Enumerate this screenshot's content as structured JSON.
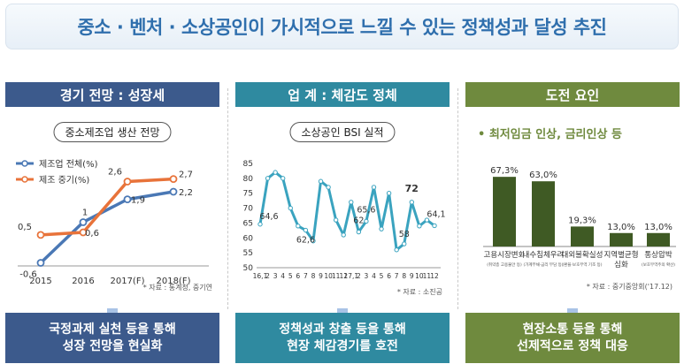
{
  "banner_title": "중소 · 벤처 · 소상공인이 가시적으로 느낄 수 있는 정책성과 달성 추진",
  "columns": {
    "c1": {
      "header": "경기 전망 : 성장세",
      "pill": "중소제조업 생산 전망",
      "source": "* 자료 : 통계청, 중기연",
      "footer_line1": "국정과제 실천 등을 통해",
      "footer_line2": "성장 전망을 현실화"
    },
    "c2": {
      "header": "업 계 : 체감도 정체",
      "pill": "소상공인 BSI 실적",
      "source": "* 자료 : 소진공",
      "footer_line1": "정책성과 창출 등을 통해",
      "footer_line2": "현장 체감경기를 호전"
    },
    "c3": {
      "header": "도전 요인",
      "bullet": "• 최저임금 인상, 금리인상 등",
      "source": "* 자료 : 중기중앙회('17.12)",
      "footer_line1": "현장소통 등을 통해",
      "footer_line2": "선제적으로 정책 대응"
    }
  },
  "colors": {
    "blue_series": "#4a78b5",
    "orange_series": "#e8733a",
    "bsi_line": "#3aa3bf",
    "bar": "#3f5a24",
    "arrow": "#a9c3e6"
  },
  "chart_data": [
    {
      "type": "line",
      "title": "중소제조업 생산 전망",
      "categories": [
        "2015",
        "2016",
        "2017(F)",
        "2018(F)"
      ],
      "series": [
        {
          "name": "제조업 전체(%)",
          "values": [
            -0.6,
            1,
            1.9,
            2.2
          ],
          "labels": [
            "-0,6",
            "1",
            "1,9",
            "2,2"
          ]
        },
        {
          "name": "제조 중기(%)",
          "values": [
            0.5,
            0.6,
            2.6,
            2.7
          ],
          "labels": [
            "0,5",
            "0,6",
            "2,6",
            "2,7"
          ]
        }
      ],
      "ylim": [
        -1,
        3
      ]
    },
    {
      "type": "line",
      "title": "소상공인 BSI 실적",
      "x_tick_labels": [
        "16,1",
        "2",
        "3",
        "4",
        "5",
        "6",
        "7",
        "8",
        "9",
        "10",
        "11",
        "12",
        "17,1",
        "2",
        "3",
        "4",
        "5",
        "6",
        "7",
        "8",
        "9",
        "10",
        "11",
        "12"
      ],
      "values": [
        64.6,
        80,
        82,
        80,
        70,
        64,
        62.6,
        59,
        79,
        77,
        66,
        61,
        72,
        62,
        65.6,
        77,
        63,
        75,
        56,
        58,
        72,
        64,
        66,
        64.1
      ],
      "annotations": [
        {
          "index": 0,
          "label": "64,6"
        },
        {
          "index": 6,
          "label": "62,6"
        },
        {
          "index": 13,
          "label": "62"
        },
        {
          "index": 14,
          "label": "65,6"
        },
        {
          "index": 19,
          "label": "58"
        },
        {
          "index": 20,
          "label": "72"
        },
        {
          "index": 23,
          "label": "64,1"
        }
      ],
      "y_ticks": [
        50,
        55,
        60,
        65,
        70,
        75,
        80,
        85
      ],
      "ylim": [
        50,
        85
      ]
    },
    {
      "type": "bar",
      "categories": [
        "고용시장변화",
        "내수침체우려",
        "대외불확실성",
        "지역별균형 심화",
        "통상압박"
      ],
      "sublabels": [
        "(취약층 고용불안 등)",
        "(가계부채·금리 부담 등)",
        "(환율·보호무역 기조 등)",
        "",
        "(보호무역주의 확산)"
      ],
      "values": [
        67.3,
        63.0,
        19.3,
        13.0,
        13.0
      ],
      "labels": [
        "67,3%",
        "63,0%",
        "19,3%",
        "13,0%",
        "13,0%"
      ],
      "ylim": [
        0,
        70
      ]
    }
  ]
}
